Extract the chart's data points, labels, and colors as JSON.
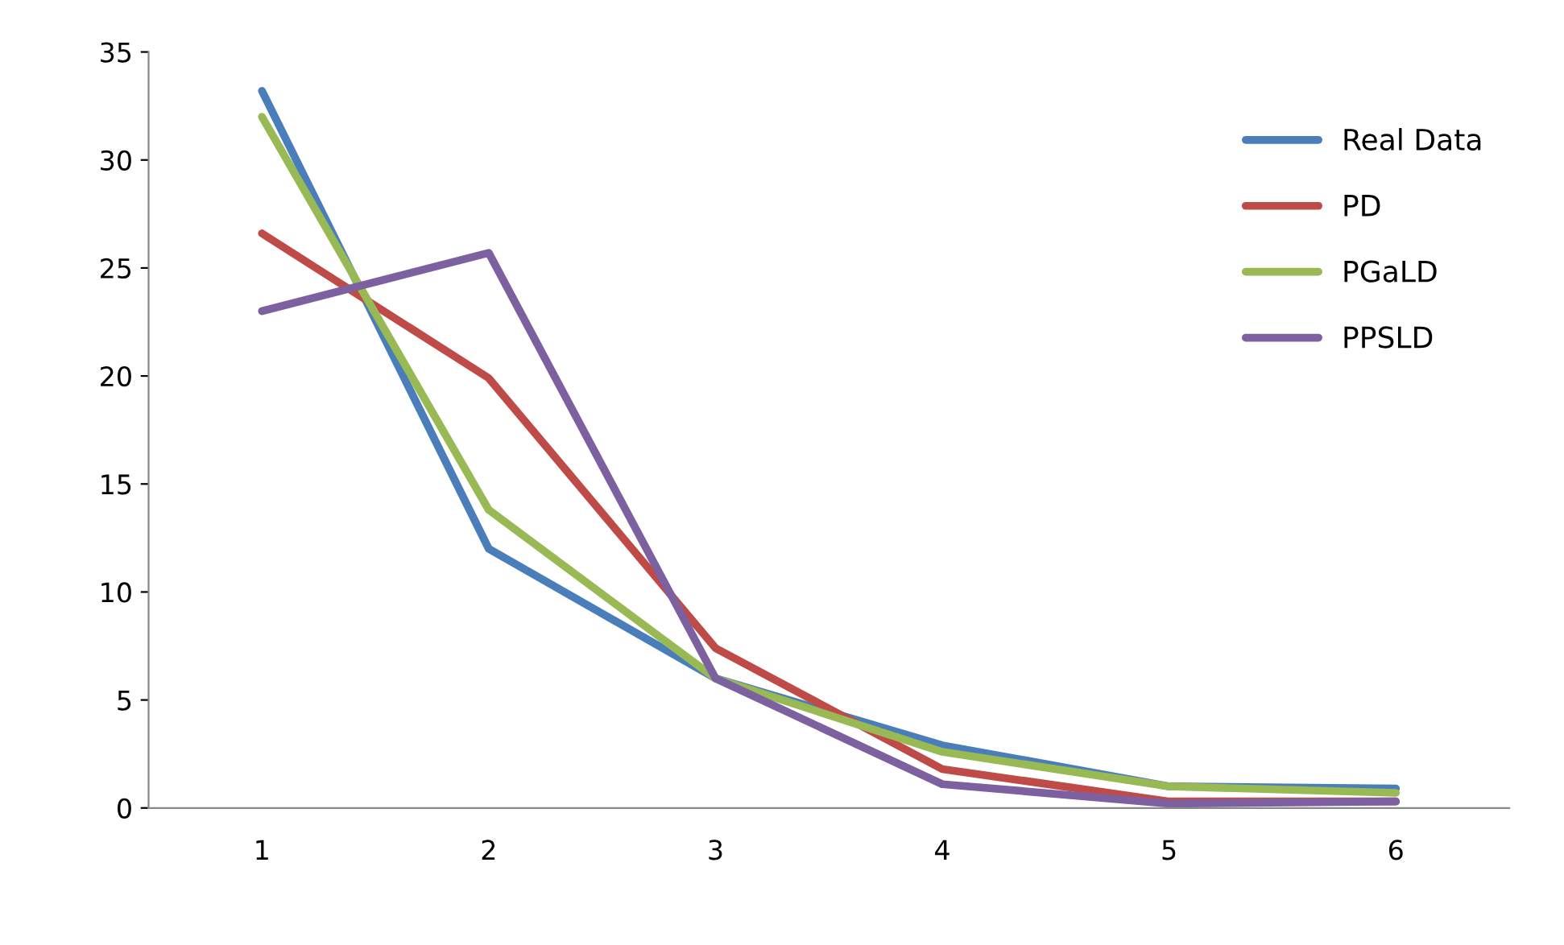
{
  "chart_data": {
    "type": "line",
    "categories": [
      "1",
      "2",
      "3",
      "4",
      "5",
      "6"
    ],
    "series": [
      {
        "name": "Real Data",
        "color": "#4a7ebb",
        "values": [
          33.2,
          12.0,
          6.0,
          2.9,
          1.0,
          0.9
        ]
      },
      {
        "name": "PD",
        "color": "#be4b48",
        "values": [
          26.6,
          19.9,
          7.4,
          1.8,
          0.3,
          0.3
        ]
      },
      {
        "name": "PGaLD",
        "color": "#98b954",
        "values": [
          32.0,
          13.8,
          6.0,
          2.6,
          1.0,
          0.7
        ]
      },
      {
        "name": "PPSLD",
        "color": "#7d60a0",
        "values": [
          23.0,
          25.7,
          6.0,
          1.1,
          0.2,
          0.3
        ]
      }
    ],
    "ylim": [
      0,
      35
    ],
    "yticks": [
      0,
      5,
      10,
      15,
      20,
      25,
      30,
      35
    ],
    "grid": false,
    "legend": "right",
    "marker": "none",
    "line_style": "solid"
  }
}
